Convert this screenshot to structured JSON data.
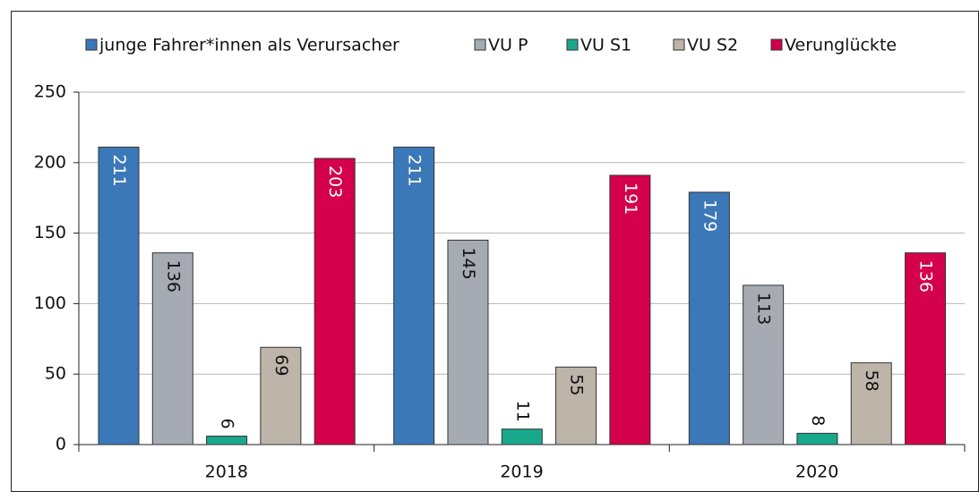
{
  "chart_data": {
    "type": "bar",
    "categories": [
      "2018",
      "2019",
      "2020"
    ],
    "series": [
      {
        "name": "junge Fahrer*innen als Verursacher",
        "color": "#3b78b8",
        "values": [
          211,
          211,
          179
        ]
      },
      {
        "name": "VU P",
        "color": "#a6abb3",
        "values": [
          136,
          145,
          113
        ]
      },
      {
        "name": "VU S1",
        "color": "#1aa88c",
        "values": [
          6,
          11,
          8
        ]
      },
      {
        "name": "VU S2",
        "color": "#bdb4aa",
        "values": [
          69,
          55,
          58
        ]
      },
      {
        "name": "Verunglückte",
        "color": "#d4004b",
        "values": [
          203,
          191,
          136
        ]
      }
    ],
    "ylim": [
      0,
      250
    ],
    "yticks": [
      0,
      50,
      100,
      150,
      200,
      250
    ],
    "grid": true,
    "legend": "top"
  }
}
